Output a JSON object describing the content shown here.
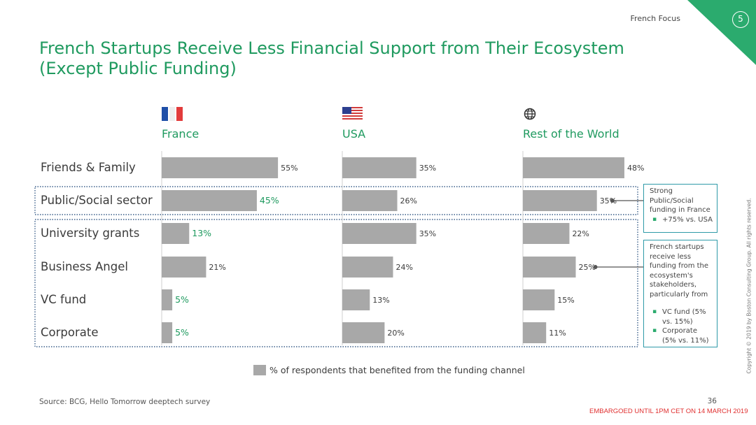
{
  "header": {
    "section_label": "French Focus",
    "page_number": "5",
    "accent_color": "#2bab6e"
  },
  "title": "French Startups Receive Less Financial Support from Their Ecosystem",
  "title_line2": "(Except Public Funding)",
  "panels": [
    {
      "name": "France",
      "icon": "france-flag-icon"
    },
    {
      "name": "USA",
      "icon": "usa-flag-icon"
    },
    {
      "name": "Rest of the World",
      "icon": "globe-icon"
    }
  ],
  "chart_data": {
    "type": "bar",
    "orientation": "horizontal",
    "categories": [
      "Friends & Family",
      "Public/Social sector",
      "University grants",
      "Business Angel",
      "VC fund",
      "Corporate"
    ],
    "series": [
      {
        "name": "France",
        "values": [
          55,
          45,
          13,
          21,
          5,
          5
        ],
        "labels": [
          "55%",
          "45%",
          "13%",
          "21%",
          "5%",
          "5%"
        ],
        "highlight": [
          false,
          true,
          true,
          false,
          true,
          true
        ]
      },
      {
        "name": "USA",
        "values": [
          35,
          26,
          35,
          24,
          13,
          20
        ],
        "labels": [
          "35%",
          "26%",
          "35%",
          "24%",
          "13%",
          "20%"
        ],
        "highlight": [
          false,
          false,
          false,
          false,
          false,
          false
        ]
      },
      {
        "name": "Rest of the World",
        "values": [
          48,
          35,
          22,
          25,
          15,
          11
        ],
        "labels": [
          "48%",
          "35%",
          "22%",
          "25%",
          "15%",
          "11%"
        ],
        "highlight": [
          false,
          false,
          false,
          false,
          false,
          false
        ]
      }
    ],
    "legend": "% of respondents that benefited from the funding channel",
    "legend_position": "bottom",
    "bar_color": "#a8a8a8",
    "highlight_color": "#1f9a5f"
  },
  "callouts": {
    "public": {
      "text": "Strong Public/Social funding in France",
      "bullets": [
        "+75% vs. USA"
      ]
    },
    "less": {
      "text": "French startups receive less funding from the ecosystem's stakeholders, particularly from",
      "bullets": [
        "VC fund (5% vs. 15%)",
        "Corporate (5% vs. 11%)"
      ]
    }
  },
  "footer": {
    "source": "Source: BCG, Hello Tomorrow deeptech survey",
    "slide_number": "36",
    "embargo": "EMBARGOED UNTIL 1PM CET ON 14 MARCH 2019",
    "copyright": "Copyright © 2019 by Boston Consulting Group. All rights reserved."
  },
  "colors": {
    "green": "#1f9a5f",
    "callout_border": "#2f9aa8",
    "dotted_box": "#3b5f8a",
    "bar": "#a8a8a8"
  }
}
